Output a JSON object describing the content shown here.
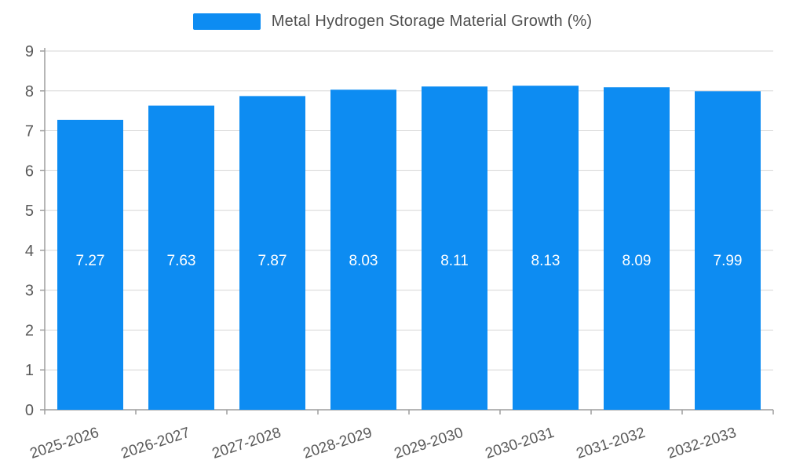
{
  "header": {
    "title": "Metal Hydrogen Storage Material Growth (%)"
  },
  "chart_data": {
    "type": "bar",
    "title": "Metal Hydrogen Storage Material Growth (%)",
    "categories": [
      "2025-2026",
      "2026-2027",
      "2027-2028",
      "2028-2029",
      "2029-2030",
      "2030-2031",
      "2031-2032",
      "2032-2033"
    ],
    "values": [
      7.27,
      7.63,
      7.87,
      8.03,
      8.11,
      8.13,
      8.09,
      7.99
    ],
    "value_labels": [
      "7.27",
      "7.63",
      "7.87",
      "8.03",
      "8.11",
      "8.13",
      "8.09",
      "7.99"
    ],
    "xlabel": "",
    "ylabel": "",
    "ylim": [
      0,
      9
    ],
    "yticks": [
      0,
      1,
      2,
      3,
      4,
      5,
      6,
      7,
      8,
      9
    ],
    "grid": true,
    "legend_position": "top",
    "colors": {
      "bar": "#0d8cf2",
      "value_label": "#ffffff",
      "axis_text": "#595959",
      "grid_line": "#d6d6d6",
      "axis_line": "#9e9e9e",
      "title_text": "#4f4f4f"
    }
  }
}
